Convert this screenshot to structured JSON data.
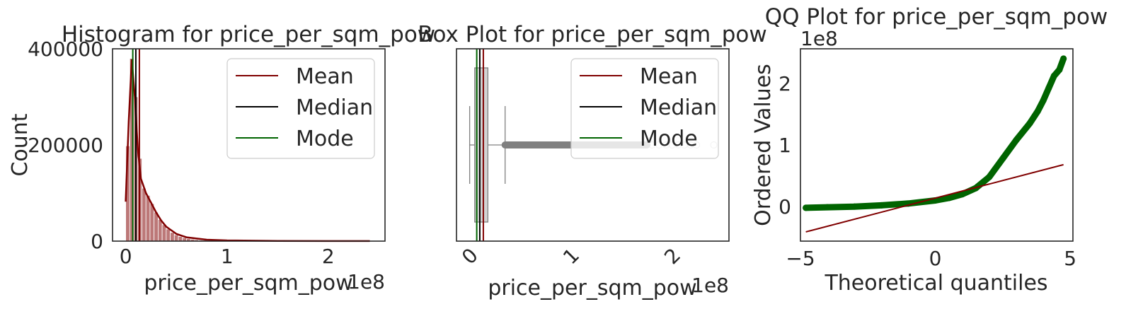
{
  "chart_data": [
    {
      "type": "bar",
      "title": "Histogram for price_per_sqm_pow",
      "xlabel": "price_per_sqm_pow",
      "ylabel": "Count",
      "x_offset": "1e8",
      "xlim": [
        -0.13,
        2.56
      ],
      "ylim": [
        0,
        400000
      ],
      "x_ticks": [
        {
          "v": 0,
          "label": "0"
        },
        {
          "v": 1,
          "label": "1"
        },
        {
          "v": 2,
          "label": "2"
        }
      ],
      "y_ticks": [
        {
          "v": 0,
          "label": "0"
        },
        {
          "v": 200000,
          "label": "200000"
        },
        {
          "v": 400000,
          "label": "400000"
        }
      ],
      "bins": [
        {
          "x0": 0.0,
          "x1": 0.04,
          "count": 198000
        },
        {
          "x0": 0.04,
          "x1": 0.08,
          "count": 380000
        },
        {
          "x0": 0.08,
          "x1": 0.12,
          "count": 300000
        },
        {
          "x0": 0.12,
          "x1": 0.16,
          "count": 172000
        },
        {
          "x0": 0.16,
          "x1": 0.2,
          "count": 110000
        },
        {
          "x0": 0.2,
          "x1": 0.24,
          "count": 95000
        },
        {
          "x0": 0.24,
          "x1": 0.28,
          "count": 78000
        },
        {
          "x0": 0.28,
          "x1": 0.32,
          "count": 60000
        },
        {
          "x0": 0.32,
          "x1": 0.36,
          "count": 45000
        },
        {
          "x0": 0.36,
          "x1": 0.4,
          "count": 34000
        },
        {
          "x0": 0.4,
          "x1": 0.44,
          "count": 25000
        },
        {
          "x0": 0.44,
          "x1": 0.48,
          "count": 18000
        },
        {
          "x0": 0.48,
          "x1": 0.52,
          "count": 13000
        },
        {
          "x0": 0.52,
          "x1": 0.56,
          "count": 9500
        },
        {
          "x0": 0.56,
          "x1": 0.6,
          "count": 7000
        },
        {
          "x0": 0.6,
          "x1": 0.64,
          "count": 5200
        },
        {
          "x0": 0.64,
          "x1": 0.68,
          "count": 3900
        },
        {
          "x0": 0.68,
          "x1": 0.72,
          "count": 2900
        },
        {
          "x0": 0.72,
          "x1": 0.76,
          "count": 2200
        },
        {
          "x0": 0.76,
          "x1": 0.8,
          "count": 1700
        },
        {
          "x0": 0.8,
          "x1": 0.9,
          "count": 1200
        },
        {
          "x0": 0.9,
          "x1": 1.0,
          "count": 800
        }
      ],
      "kde": [
        [
          0.0,
          82000
        ],
        [
          0.03,
          250000
        ],
        [
          0.06,
          378000
        ],
        [
          0.09,
          300000
        ],
        [
          0.12,
          190000
        ],
        [
          0.15,
          130000
        ],
        [
          0.2,
          100000
        ],
        [
          0.25,
          80000
        ],
        [
          0.3,
          60000
        ],
        [
          0.35,
          43000
        ],
        [
          0.4,
          30000
        ],
        [
          0.5,
          15000
        ],
        [
          0.6,
          8000
        ],
        [
          0.8,
          3000
        ],
        [
          1.0,
          1500
        ],
        [
          1.5,
          500
        ],
        [
          2.0,
          200
        ],
        [
          2.41,
          80
        ]
      ],
      "lines": [
        {
          "name": "Mean",
          "value": 0.135,
          "color": "#800000"
        },
        {
          "name": "Median",
          "value": 0.1,
          "color": "#000000"
        },
        {
          "name": "Mode",
          "value": 0.07,
          "color": "#006400"
        }
      ],
      "legend": {
        "placement": "upper right",
        "entries": [
          "Mean",
          "Median",
          "Mode"
        ]
      },
      "bar_color": "#b06060",
      "kde_color": "#800000"
    },
    {
      "type": "box",
      "title": "Box Plot for price_per_sqm_pow",
      "xlabel": "price_per_sqm_pow",
      "x_offset": "1e8",
      "xlim": [
        -0.13,
        2.56
      ],
      "x_ticks": [
        {
          "v": 0,
          "label": "0"
        },
        {
          "v": 1,
          "label": "1"
        },
        {
          "v": 2,
          "label": "2"
        }
      ],
      "box": {
        "whisker_low": 0.0,
        "q1": 0.05,
        "median": 0.1,
        "q3": 0.18,
        "whisker_high": 0.35
      },
      "outliers_dense_range": [
        0.35,
        1.75
      ],
      "outliers_sparse": [
        1.8,
        1.87,
        1.94,
        2.0,
        2.06,
        2.12,
        2.18,
        2.24,
        2.41
      ],
      "lines": [
        {
          "name": "Mean",
          "value": 0.135,
          "color": "#800000"
        },
        {
          "name": "Median",
          "value": 0.1,
          "color": "#000000"
        },
        {
          "name": "Mode",
          "value": 0.07,
          "color": "#006400"
        }
      ],
      "legend": {
        "placement": "upper right",
        "entries": [
          "Mean",
          "Median",
          "Mode"
        ]
      },
      "box_color": "#d3d3d3",
      "outlier_color": "#808080"
    },
    {
      "type": "scatter",
      "title": "QQ Plot for price_per_sqm_pow",
      "xlabel": "Theoretical quantiles",
      "ylabel": "Ordered Values",
      "y_offset": "1e8",
      "xlim": [
        -5.0,
        5.1
      ],
      "ylim": [
        -0.56,
        2.56
      ],
      "x_ticks": [
        {
          "v": -5,
          "label": "−5"
        },
        {
          "v": 0,
          "label": "0"
        },
        {
          "v": 5,
          "label": "5"
        }
      ],
      "y_ticks": [
        {
          "v": 0,
          "label": "0"
        },
        {
          "v": 1,
          "label": "1"
        },
        {
          "v": 2,
          "label": "2"
        }
      ],
      "points": [
        [
          -4.8,
          -0.02
        ],
        [
          -4.0,
          -0.01
        ],
        [
          -3.0,
          0.0
        ],
        [
          -2.0,
          0.02
        ],
        [
          -1.0,
          0.05
        ],
        [
          0.0,
          0.1
        ],
        [
          0.5,
          0.14
        ],
        [
          1.0,
          0.2
        ],
        [
          1.5,
          0.3
        ],
        [
          2.0,
          0.48
        ],
        [
          2.5,
          0.78
        ],
        [
          3.0,
          1.08
        ],
        [
          3.5,
          1.35
        ],
        [
          3.8,
          1.55
        ],
        [
          4.0,
          1.72
        ],
        [
          4.2,
          1.92
        ],
        [
          4.4,
          2.12
        ],
        [
          4.6,
          2.22
        ],
        [
          4.75,
          2.4
        ]
      ],
      "fit_line": [
        [
          -4.8,
          -0.41
        ],
        [
          4.75,
          0.68
        ]
      ],
      "point_color": "#006400",
      "line_color": "#800000"
    }
  ]
}
